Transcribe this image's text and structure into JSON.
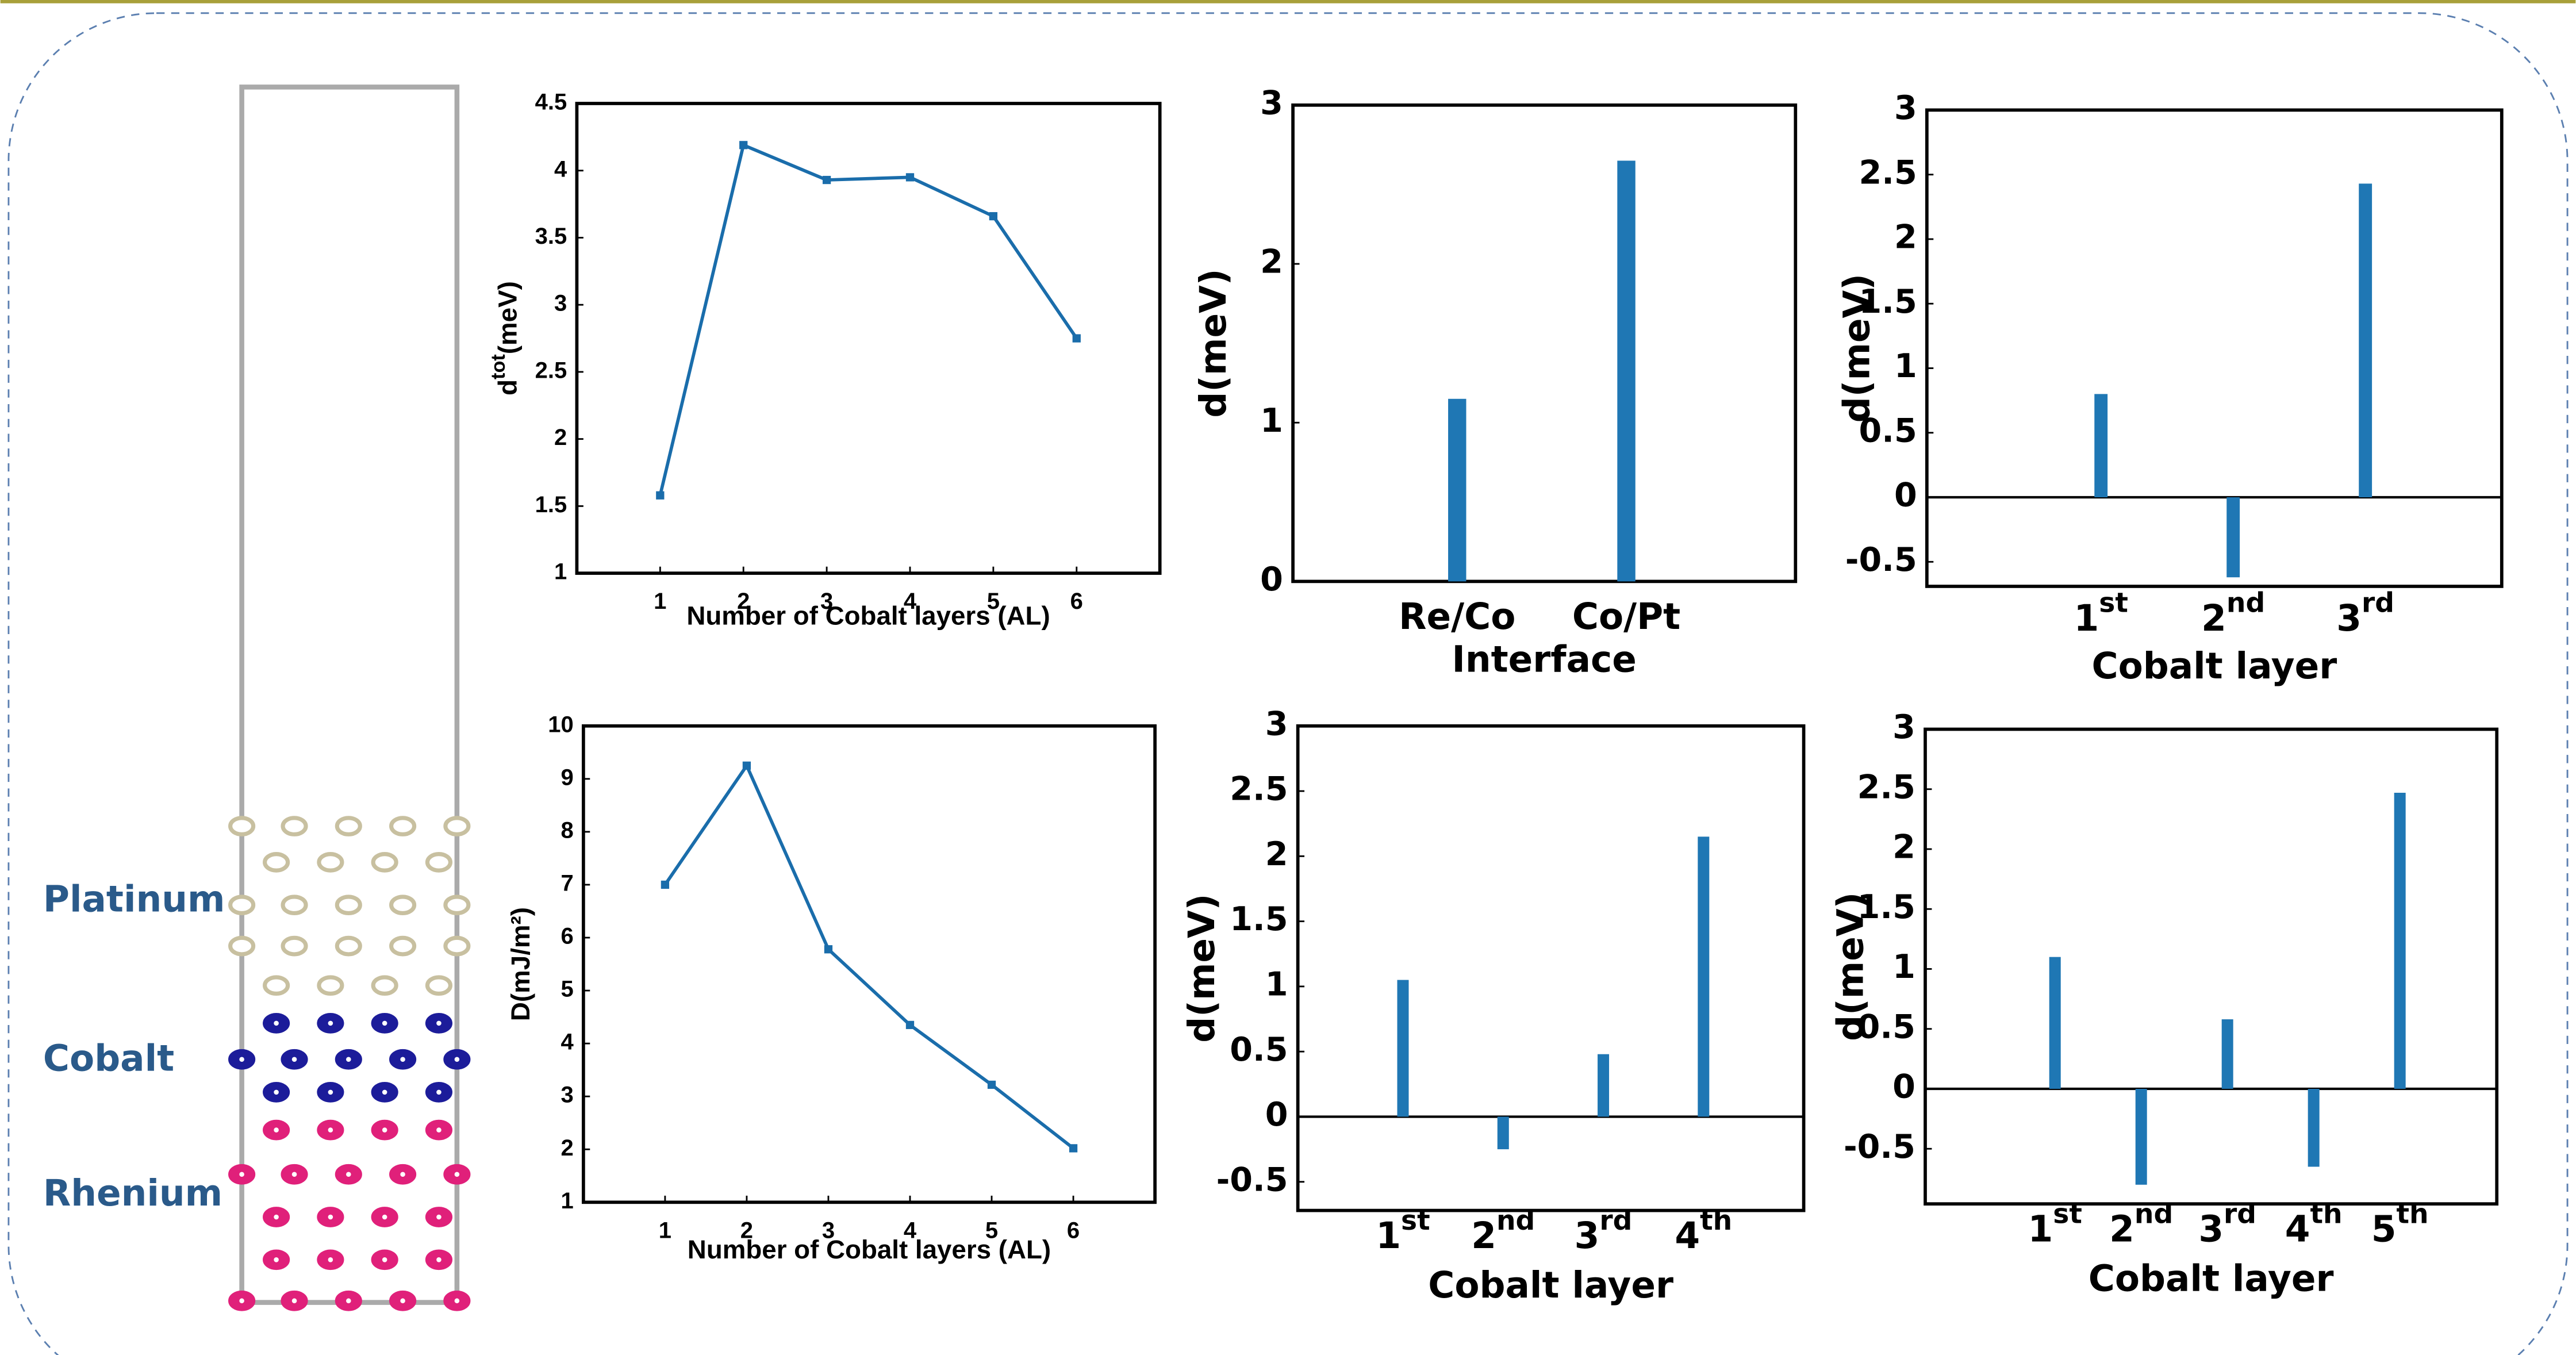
{
  "structure_labels": [
    "Platinum",
    "Cobalt",
    "Rhenium"
  ],
  "chart_data": [
    {
      "type": "line",
      "ylabel": [
        "d",
        "tot",
        "(meV)"
      ],
      "xlabel": "Number of Cobalt layers (AL)",
      "x": [
        1,
        2,
        3,
        4,
        5,
        6
      ],
      "values": [
        1.58,
        4.19,
        3.93,
        3.95,
        3.66,
        2.75
      ],
      "color": "#1a6dab",
      "xlim": [
        0,
        7
      ],
      "xticks": [
        1,
        2,
        3,
        4,
        5,
        6
      ],
      "ylim": [
        1,
        4.5
      ],
      "yticks": [
        1,
        1.5,
        2,
        2.5,
        3,
        3.5,
        4,
        4.5
      ]
    },
    {
      "type": "line",
      "ylabel": [
        "D(mJ/m²)"
      ],
      "xlabel": "Number of Cobalt layers (AL)",
      "x": [
        1,
        2,
        3,
        4,
        5,
        6
      ],
      "values": [
        7.0,
        9.25,
        5.78,
        4.35,
        3.22,
        2.02
      ],
      "color": "#1a6dab",
      "xlim": [
        0,
        7
      ],
      "xticks": [
        1,
        2,
        3,
        4,
        5,
        6
      ],
      "ylim": [
        1,
        10
      ],
      "yticks": [
        1,
        2,
        3,
        4,
        5,
        6,
        7,
        8,
        9,
        10
      ]
    },
    {
      "type": "bar",
      "ylabel": [
        "d(meV)"
      ],
      "xlabel": "Interface",
      "categories": [
        "Re/Co",
        "Co/Pt"
      ],
      "values": [
        1.15,
        2.65
      ],
      "color": "#1f77b4",
      "ylim": [
        0,
        3
      ],
      "yticks": [
        0,
        1,
        2,
        3
      ]
    },
    {
      "type": "bar",
      "ylabel": [
        "d(meV)"
      ],
      "xlabel": "Cobalt layer",
      "categories": [
        "1st",
        "2nd",
        "3rd"
      ],
      "values": [
        0.8,
        -0.62,
        2.43
      ],
      "color": "#1f77b4",
      "ylim": [
        -0.69,
        3
      ],
      "yticks": [
        -0.5,
        0,
        0.5,
        1,
        1.5,
        2,
        2.5,
        3
      ]
    },
    {
      "type": "bar",
      "ylabel": [
        "d(meV)"
      ],
      "xlabel": "Cobalt layer",
      "categories": [
        "1st",
        "2nd",
        "3rd",
        "4th"
      ],
      "values": [
        1.05,
        -0.25,
        0.48,
        2.15
      ],
      "color": "#1f77b4",
      "ylim": [
        -0.72,
        3
      ],
      "yticks": [
        -0.5,
        0,
        0.5,
        1,
        1.5,
        2,
        2.5,
        3
      ]
    },
    {
      "type": "bar",
      "ylabel": [
        "d(meV)"
      ],
      "xlabel": "Cobalt layer",
      "categories": [
        "1st",
        "2nd",
        "3rd",
        "4th",
        "5th"
      ],
      "values": [
        1.1,
        -0.8,
        0.58,
        -0.65,
        2.47
      ],
      "color": "#1f77b4",
      "ylim": [
        -0.96,
        3
      ],
      "yticks": [
        -0.5,
        0,
        0.5,
        1,
        1.5,
        2,
        2.5,
        3
      ]
    }
  ]
}
